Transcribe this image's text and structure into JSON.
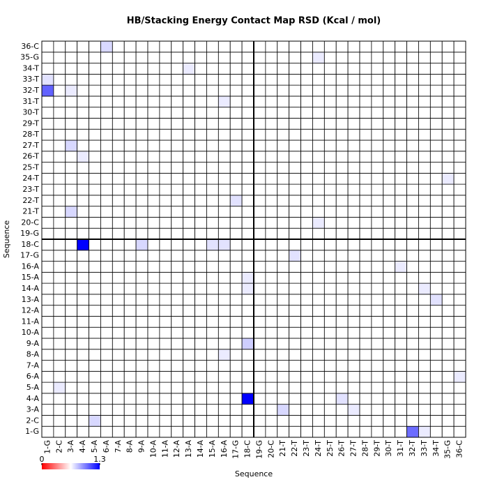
{
  "chart_data": {
    "type": "heatmap",
    "title": "HB/Stacking Energy Contact Map RSD (Kcal / mol)",
    "xlabel": "Sequence",
    "ylabel": "Sequence",
    "xcategories": [
      "1-G",
      "2-C",
      "3-A",
      "4-A",
      "5-A",
      "6-A",
      "7-A",
      "8-A",
      "9-A",
      "10-A",
      "11-A",
      "12-A",
      "13-A",
      "14-A",
      "15-A",
      "16-A",
      "17-G",
      "18-C",
      "19-G",
      "20-C",
      "21-T",
      "22-T",
      "23-T",
      "24-T",
      "25-T",
      "26-T",
      "27-T",
      "28-T",
      "29-T",
      "30-T",
      "31-T",
      "32-T",
      "33-T",
      "34-T",
      "35-G",
      "36-C"
    ],
    "ycategories": [
      "1-G",
      "2-C",
      "3-A",
      "4-A",
      "5-A",
      "6-A",
      "7-A",
      "8-A",
      "9-A",
      "10-A",
      "11-A",
      "12-A",
      "13-A",
      "14-A",
      "15-A",
      "16-A",
      "17-G",
      "18-C",
      "19-G",
      "20-C",
      "21-T",
      "22-T",
      "23-T",
      "24-T",
      "25-T",
      "26-T",
      "27-T",
      "28-T",
      "29-T",
      "30-T",
      "31-T",
      "32-T",
      "33-T",
      "34-T",
      "35-G",
      "36-C"
    ],
    "values": [
      [
        0,
        0,
        0,
        0,
        0,
        0,
        0,
        0,
        0,
        0,
        0,
        0,
        0,
        0,
        0,
        0,
        0,
        0,
        0,
        0,
        0,
        0,
        0,
        0,
        0,
        0,
        0,
        0,
        0,
        0,
        0,
        0.75,
        0.1,
        0,
        0,
        0
      ],
      [
        0,
        0,
        0,
        0,
        0.2,
        0,
        0,
        0,
        0,
        0,
        0,
        0,
        0,
        0,
        0,
        0,
        0,
        0,
        0,
        0,
        0,
        0,
        0,
        0,
        0,
        0,
        0,
        0,
        0,
        0,
        0,
        0,
        0,
        0,
        0,
        0
      ],
      [
        0,
        0,
        0,
        0,
        0,
        0,
        0,
        0,
        0,
        0,
        0,
        0,
        0,
        0,
        0,
        0,
        0,
        0,
        0,
        0,
        0.2,
        0,
        0,
        0,
        0,
        0,
        0.1,
        0,
        0,
        0,
        0,
        0,
        0,
        0,
        0,
        0
      ],
      [
        0,
        0,
        0,
        0,
        0,
        0,
        0,
        0,
        0,
        0,
        0,
        0,
        0,
        0,
        0,
        0,
        0,
        1.3,
        0,
        0,
        0,
        0,
        0,
        0,
        0,
        0.15,
        0,
        0,
        0,
        0,
        0,
        0,
        0,
        0,
        0,
        0
      ],
      [
        0,
        0.1,
        0,
        0,
        0,
        0,
        0,
        0,
        0,
        0,
        0,
        0,
        0,
        0,
        0,
        0,
        0,
        0,
        0,
        0,
        0,
        0,
        0,
        0,
        0,
        0,
        0,
        0,
        0,
        0,
        0,
        0,
        0,
        0,
        0,
        0
      ],
      [
        0,
        0,
        0,
        0,
        0,
        0,
        0,
        0,
        0,
        0,
        0,
        0,
        0,
        0,
        0,
        0,
        0,
        0,
        0,
        0,
        0,
        0,
        0,
        0,
        0,
        0,
        0,
        0,
        0,
        0,
        0,
        0,
        0,
        0,
        0,
        0.1
      ],
      [
        0,
        0,
        0,
        0,
        0,
        0,
        0,
        0,
        0,
        0,
        0,
        0,
        0,
        0,
        0,
        0,
        0,
        0,
        0,
        0,
        0,
        0,
        0,
        0,
        0,
        0,
        0,
        0,
        0,
        0,
        0,
        0,
        0,
        0,
        0,
        0
      ],
      [
        0,
        0,
        0,
        0,
        0,
        0,
        0,
        0,
        0,
        0,
        0,
        0,
        0,
        0,
        0,
        0.1,
        0,
        0,
        0,
        0,
        0,
        0,
        0,
        0,
        0,
        0,
        0,
        0,
        0,
        0,
        0,
        0,
        0,
        0,
        0,
        0
      ],
      [
        0,
        0,
        0,
        0,
        0,
        0,
        0,
        0,
        0,
        0,
        0,
        0,
        0,
        0,
        0,
        0,
        0,
        0.25,
        0,
        0,
        0,
        0,
        0,
        0,
        0,
        0,
        0,
        0,
        0,
        0,
        0,
        0,
        0,
        0,
        0,
        0
      ],
      [
        0,
        0,
        0,
        0,
        0,
        0,
        0,
        0,
        0,
        0,
        0,
        0,
        0,
        0,
        0,
        0,
        0,
        0,
        0,
        0,
        0,
        0,
        0,
        0,
        0,
        0,
        0,
        0,
        0,
        0,
        0,
        0,
        0,
        0,
        0,
        0
      ],
      [
        0,
        0,
        0,
        0,
        0,
        0,
        0,
        0,
        0,
        0,
        0,
        0,
        0,
        0,
        0,
        0,
        0,
        0,
        0,
        0,
        0,
        0,
        0,
        0,
        0,
        0,
        0,
        0,
        0,
        0,
        0,
        0,
        0,
        0,
        0,
        0
      ],
      [
        0,
        0,
        0,
        0,
        0,
        0,
        0,
        0,
        0,
        0,
        0,
        0,
        0,
        0,
        0,
        0,
        0,
        0,
        0,
        0,
        0,
        0,
        0,
        0,
        0,
        0,
        0,
        0,
        0,
        0,
        0,
        0,
        0,
        0,
        0,
        0
      ],
      [
        0,
        0,
        0,
        0,
        0,
        0,
        0,
        0,
        0,
        0,
        0,
        0,
        0,
        0,
        0,
        0,
        0,
        0,
        0,
        0,
        0,
        0,
        0,
        0,
        0,
        0,
        0,
        0,
        0,
        0,
        0,
        0,
        0,
        0.15,
        0,
        0
      ],
      [
        0,
        0,
        0,
        0,
        0,
        0,
        0,
        0,
        0,
        0,
        0,
        0,
        0,
        0,
        0,
        0,
        0,
        0.1,
        0,
        0,
        0,
        0,
        0,
        0,
        0,
        0,
        0,
        0,
        0,
        0,
        0,
        0,
        0.1,
        0,
        0,
        0
      ],
      [
        0,
        0,
        0,
        0,
        0,
        0,
        0,
        0,
        0,
        0,
        0,
        0,
        0,
        0,
        0,
        0,
        0,
        0.1,
        0,
        0,
        0,
        0,
        0,
        0,
        0,
        0,
        0,
        0,
        0,
        0,
        0,
        0,
        0,
        0,
        0,
        0
      ],
      [
        0,
        0,
        0,
        0,
        0,
        0,
        0,
        0,
        0,
        0,
        0,
        0,
        0,
        0,
        0,
        0,
        0,
        0,
        0,
        0,
        0,
        0,
        0,
        0,
        0,
        0,
        0,
        0,
        0,
        0,
        0.1,
        0,
        0,
        0,
        0,
        0
      ],
      [
        0,
        0,
        0,
        0,
        0,
        0,
        0,
        0,
        0,
        0,
        0,
        0,
        0,
        0,
        0,
        0,
        0,
        0,
        0,
        0,
        0,
        0.15,
        0,
        0,
        0,
        0,
        0,
        0,
        0,
        0,
        0,
        0,
        0,
        0,
        0,
        0
      ],
      [
        0,
        0,
        0,
        1.3,
        0,
        0,
        0,
        0,
        0.2,
        0,
        0,
        0,
        0,
        0,
        0.15,
        0.15,
        0,
        0,
        0,
        0,
        0,
        0,
        0,
        0,
        0,
        0,
        0,
        0,
        0,
        0,
        0,
        0,
        0,
        0,
        0,
        0
      ],
      [
        0,
        0,
        0,
        0,
        0,
        0,
        0,
        0,
        0,
        0,
        0,
        0,
        0,
        0,
        0,
        0,
        0,
        0,
        0,
        0,
        0,
        0,
        0,
        0,
        0,
        0,
        0,
        0,
        0,
        0,
        0,
        0,
        0,
        0,
        0,
        0
      ],
      [
        0,
        0,
        0,
        0,
        0,
        0,
        0,
        0,
        0,
        0,
        0,
        0,
        0,
        0,
        0,
        0,
        0,
        0,
        0,
        0,
        0,
        0,
        0,
        0.1,
        0,
        0,
        0,
        0,
        0,
        0,
        0,
        0,
        0,
        0,
        0,
        0
      ],
      [
        0,
        0,
        0.2,
        0,
        0,
        0,
        0,
        0,
        0,
        0,
        0,
        0,
        0,
        0,
        0,
        0,
        0,
        0,
        0,
        0,
        0,
        0,
        0,
        0,
        0,
        0,
        0,
        0,
        0,
        0,
        0,
        0,
        0,
        0,
        0,
        0
      ],
      [
        0,
        0,
        0,
        0,
        0,
        0,
        0,
        0,
        0,
        0,
        0,
        0,
        0,
        0,
        0,
        0,
        0.15,
        0,
        0,
        0,
        0,
        0,
        0,
        0,
        0,
        0,
        0,
        0,
        0,
        0,
        0,
        0,
        0,
        0,
        0,
        0
      ],
      [
        0,
        0,
        0,
        0,
        0,
        0,
        0,
        0,
        0,
        0,
        0,
        0,
        0,
        0,
        0,
        0,
        0,
        0,
        0,
        0,
        0,
        0,
        0,
        0,
        0,
        0,
        0,
        0,
        0,
        0,
        0,
        0,
        0,
        0,
        0,
        0
      ],
      [
        0,
        0,
        0,
        0,
        0,
        0,
        0,
        0,
        0,
        0,
        0,
        0,
        0,
        0,
        0,
        0,
        0,
        0,
        0,
        0,
        0,
        0,
        0,
        0,
        0,
        0,
        0,
        0,
        0,
        0,
        0,
        0,
        0,
        0,
        0.1,
        0
      ],
      [
        0,
        0,
        0,
        0,
        0,
        0,
        0,
        0,
        0,
        0,
        0,
        0,
        0,
        0,
        0,
        0,
        0,
        0,
        0,
        0,
        0,
        0,
        0,
        0,
        0,
        0,
        0,
        0,
        0,
        0,
        0,
        0,
        0,
        0,
        0,
        0
      ],
      [
        0,
        0,
        0,
        0.1,
        0,
        0,
        0,
        0,
        0,
        0,
        0,
        0,
        0,
        0,
        0,
        0,
        0,
        0,
        0,
        0,
        0,
        0,
        0,
        0,
        0,
        0,
        0,
        0,
        0,
        0,
        0,
        0,
        0,
        0,
        0,
        0
      ],
      [
        0,
        0,
        0.2,
        0,
        0,
        0,
        0,
        0,
        0,
        0,
        0,
        0,
        0,
        0,
        0,
        0,
        0,
        0,
        0,
        0,
        0,
        0,
        0,
        0,
        0,
        0,
        0,
        0,
        0,
        0,
        0,
        0,
        0,
        0,
        0,
        0
      ],
      [
        0,
        0,
        0,
        0,
        0,
        0,
        0,
        0,
        0,
        0,
        0,
        0,
        0,
        0,
        0,
        0,
        0,
        0,
        0,
        0,
        0,
        0,
        0,
        0,
        0,
        0,
        0,
        0,
        0,
        0,
        0,
        0,
        0,
        0,
        0,
        0
      ],
      [
        0,
        0,
        0,
        0,
        0,
        0,
        0,
        0,
        0,
        0,
        0,
        0,
        0,
        0,
        0,
        0,
        0,
        0,
        0,
        0,
        0,
        0,
        0,
        0,
        0,
        0,
        0,
        0,
        0,
        0,
        0,
        0,
        0,
        0,
        0,
        0
      ],
      [
        0,
        0,
        0,
        0,
        0,
        0,
        0,
        0,
        0,
        0,
        0,
        0,
        0,
        0,
        0,
        0,
        0,
        0,
        0,
        0,
        0,
        0,
        0,
        0,
        0,
        0,
        0,
        0,
        0,
        0,
        0,
        0,
        0,
        0,
        0,
        0
      ],
      [
        0,
        0,
        0,
        0,
        0,
        0,
        0,
        0,
        0,
        0,
        0,
        0,
        0,
        0,
        0,
        0.1,
        0,
        0,
        0,
        0,
        0,
        0,
        0,
        0,
        0,
        0,
        0,
        0,
        0,
        0,
        0,
        0,
        0,
        0,
        0,
        0
      ],
      [
        0.8,
        0,
        0.1,
        0,
        0,
        0,
        0,
        0,
        0,
        0,
        0,
        0,
        0,
        0,
        0,
        0,
        0,
        0,
        0,
        0,
        0,
        0,
        0,
        0,
        0,
        0,
        0,
        0,
        0,
        0,
        0,
        0,
        0,
        0,
        0,
        0
      ],
      [
        0.15,
        0,
        0,
        0,
        0,
        0,
        0,
        0,
        0,
        0,
        0,
        0,
        0,
        0,
        0,
        0,
        0,
        0,
        0,
        0,
        0,
        0,
        0,
        0,
        0,
        0,
        0,
        0,
        0,
        0,
        0,
        0,
        0,
        0,
        0,
        0
      ],
      [
        0,
        0,
        0,
        0,
        0,
        0,
        0,
        0,
        0,
        0,
        0,
        0,
        0.1,
        0,
        0,
        0,
        0,
        0,
        0,
        0,
        0,
        0,
        0,
        0,
        0,
        0,
        0,
        0,
        0,
        0,
        0,
        0,
        0,
        0,
        0,
        0
      ],
      [
        0,
        0,
        0,
        0,
        0,
        0,
        0,
        0,
        0,
        0,
        0,
        0,
        0,
        0,
        0,
        0,
        0,
        0,
        0,
        0,
        0,
        0,
        0,
        0.1,
        0,
        0,
        0,
        0,
        0,
        0,
        0,
        0,
        0,
        0,
        0,
        0
      ],
      [
        0,
        0,
        0,
        0,
        0,
        0.2,
        0,
        0,
        0,
        0,
        0,
        0,
        0,
        0,
        0,
        0,
        0,
        0,
        0,
        0,
        0,
        0,
        0,
        0,
        0,
        0,
        0,
        0,
        0,
        0,
        0,
        0,
        0,
        0,
        0,
        0
      ]
    ],
    "zlim": [
      0,
      1.3
    ],
    "colorbar_ticks": [
      0,
      1.3
    ],
    "color": "#0000ff"
  }
}
